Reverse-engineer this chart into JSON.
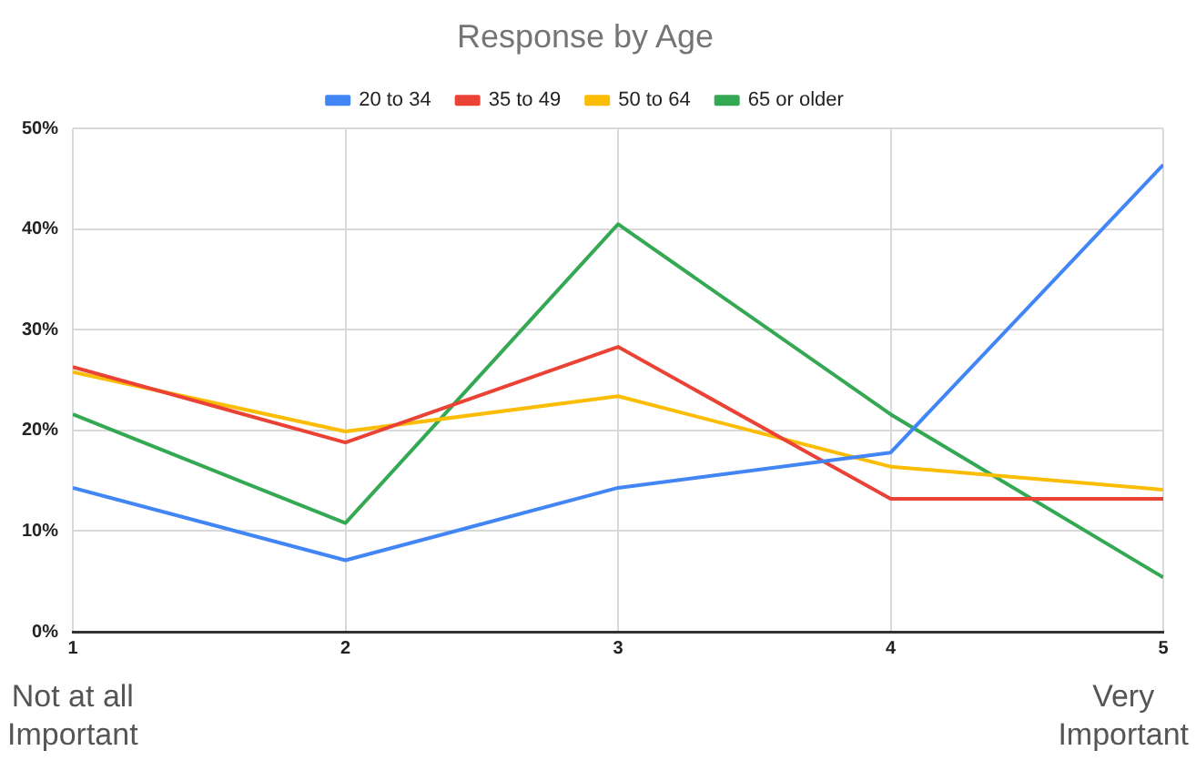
{
  "chart_data": {
    "type": "line",
    "title": "Response by Age",
    "x": [
      1,
      2,
      3,
      4,
      5
    ],
    "xlim": [
      1,
      5
    ],
    "xticks": [
      1,
      2,
      3,
      4,
      5
    ],
    "ylim": [
      0,
      50
    ],
    "yticks": [
      {
        "value": 0,
        "label": "0%"
      },
      {
        "value": 10,
        "label": "10%"
      },
      {
        "value": 20,
        "label": "20%"
      },
      {
        "value": 30,
        "label": "30%"
      },
      {
        "value": 40,
        "label": "40%"
      },
      {
        "value": 50,
        "label": "50%"
      }
    ],
    "series": [
      {
        "name": "20 to 34",
        "color": "#4285f4",
        "values": [
          14.3,
          7.1,
          14.3,
          17.8,
          46.4
        ]
      },
      {
        "name": "35 to 49",
        "color": "#ea4335",
        "values": [
          26.3,
          18.8,
          28.3,
          13.2,
          13.2
        ]
      },
      {
        "name": "50 to 64",
        "color": "#fbbc04",
        "values": [
          25.8,
          19.9,
          23.4,
          16.4,
          14.1
        ]
      },
      {
        "name": "65 or older",
        "color": "#34a853",
        "values": [
          21.6,
          10.8,
          40.5,
          21.6,
          5.4
        ]
      }
    ],
    "annotations": [
      "Not at all\nImportant",
      "Very\nImportant"
    ],
    "grid": true,
    "legend": "top",
    "marker": "none",
    "line_style": "solid"
  }
}
